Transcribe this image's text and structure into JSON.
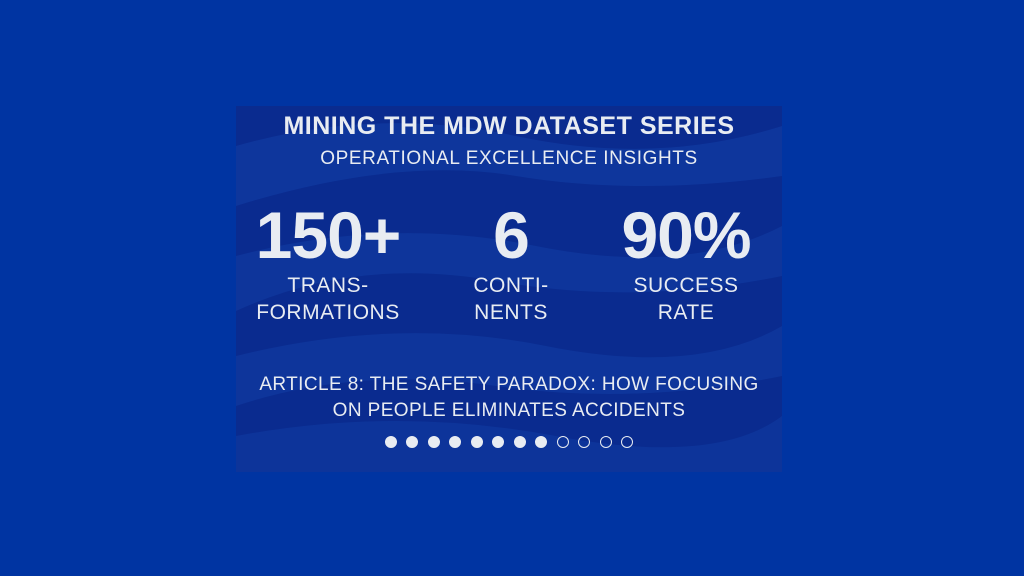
{
  "colors": {
    "background": "#0034a2",
    "card": "#0a2b8f",
    "text": "#e8ecf2"
  },
  "title": "MINING THE MDW DATASET SERIES",
  "subtitle": "OPERATIONAL EXCELLENCE INSIGHTS",
  "stats": [
    {
      "value": "150+",
      "label_line1": "TRANS-",
      "label_line2": "FORMATIONS"
    },
    {
      "value": "6",
      "label_line1": "CONTI-",
      "label_line2": "NENTS"
    },
    {
      "value": "90%",
      "label_line1": "SUCCESS",
      "label_line2": "RATE"
    }
  ],
  "article": {
    "line1": "ARTICLE 8: THE SAFETY PARADOX: HOW FOCUSING",
    "line2": "ON PEOPLE ELIMINATES ACCIDENTS"
  },
  "progress": {
    "current": 8,
    "total": 12
  }
}
